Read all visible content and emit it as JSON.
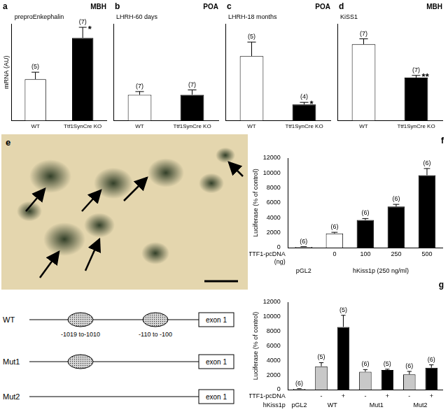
{
  "chart_data": [
    {
      "type": "bar",
      "title": "a",
      "annotations": [
        "MBH",
        "preproEnkephalin"
      ],
      "ylabel": "mRNA (AU)",
      "categories": [
        "WT",
        "Ttf1SynCre KO"
      ],
      "values": [
        2.35,
        4.7
      ],
      "errors": [
        0.4,
        0.6
      ],
      "n_labels": [
        "(5)",
        "(7)"
      ],
      "significance": [
        null,
        "*"
      ],
      "colors": [
        "#ffffff",
        "#000000"
      ],
      "ylim": [
        0,
        5.5
      ],
      "tick_labels": "x",
      "grid": false
    },
    {
      "type": "bar",
      "title": "b",
      "annotations": [
        "POA",
        "LHRH-60 days"
      ],
      "categories": [
        "WT",
        "Ttf1SynCre KO"
      ],
      "values": [
        0.16,
        0.16
      ],
      "errors": [
        0.02,
        0.03
      ],
      "n_labels": [
        "(7)",
        "(7)"
      ],
      "colors": [
        "#ffffff",
        "#000000"
      ],
      "ylim": [
        0,
        0.6
      ],
      "tick_labels": "x",
      "grid": false
    },
    {
      "type": "bar",
      "title": "c",
      "annotations": [
        "POA",
        "LHRH-18 months"
      ],
      "categories": [
        "WT",
        "Ttf1SynCre KO"
      ],
      "values": [
        0.3,
        0.075
      ],
      "errors": [
        0.065,
        0.01
      ],
      "n_labels": [
        "(5)",
        "(4)"
      ],
      "significance": [
        null,
        "*"
      ],
      "colors": [
        "#ffffff",
        "#000000"
      ],
      "ylim": [
        0,
        0.45
      ],
      "tick_labels": "x",
      "grid": false
    },
    {
      "type": "bar",
      "title": "d",
      "annotations": [
        "MBH",
        "KiSS1"
      ],
      "categories": [
        "WT",
        "Ttf1SynCre KO"
      ],
      "values": [
        0.71,
        0.4
      ],
      "errors": [
        0.05,
        0.02
      ],
      "n_labels": [
        "(7)",
        "(7)"
      ],
      "significance": [
        null,
        "**"
      ],
      "colors": [
        "#ffffff",
        "#000000"
      ],
      "ylim": [
        0,
        0.9
      ],
      "tick_labels": "x",
      "grid": false
    },
    {
      "type": "bar",
      "title": "f",
      "ylabel": "Luciferase (% of control)",
      "x_label": [
        "TTF1-pcDNA",
        "(ng)"
      ],
      "categories": [
        null,
        "0",
        "100",
        "250",
        "500"
      ],
      "groups": [
        "pGL2",
        "hKiss1p (250 ng/ml)",
        "hKiss1p (250 ng/ml)",
        "hKiss1p (250 ng/ml)",
        "hKiss1p (250 ng/ml)"
      ],
      "values": [
        100,
        1900,
        3700,
        5500,
        9700
      ],
      "errors": [
        30,
        150,
        200,
        300,
        900
      ],
      "n_labels": [
        "(6)",
        "(6)",
        "(6)",
        "(6)",
        "(6)"
      ],
      "colors": [
        "#ffffff",
        "#ffffff",
        "#000000",
        "#000000",
        "#000000"
      ],
      "ylim": [
        0,
        12000
      ],
      "yticks": [
        0,
        2000,
        4000,
        6000,
        8000,
        10000,
        12000
      ],
      "grid": false
    },
    {
      "type": "bar",
      "title": "g",
      "ylabel": "Luciferase (% of control)",
      "x_label": [
        "TTF1-pcDNA"
      ],
      "group_label": "hKiss1p",
      "categories": [
        null,
        "-",
        "+",
        "-",
        "+",
        "-",
        "+"
      ],
      "groups": [
        "pGL2",
        "WT",
        "WT",
        "Mut1",
        "Mut1",
        "Mut2",
        "Mut2"
      ],
      "values": [
        100,
        3200,
        8600,
        2450,
        2700,
        2100,
        3000
      ],
      "errors": [
        30,
        500,
        1600,
        300,
        100,
        400,
        400
      ],
      "n_labels": [
        "(6)",
        "(5)",
        "(5)",
        "(6)",
        "(5)",
        "(6)",
        "(6)"
      ],
      "colors": [
        "#ffffff",
        "#c8c8c8",
        "#000000",
        "#c8c8c8",
        "#000000",
        "#c8c8c8",
        "#000000"
      ],
      "ylim": [
        0,
        12000
      ],
      "yticks": [
        0,
        2000,
        4000,
        6000,
        8000,
        10000,
        12000
      ],
      "grid": false
    }
  ],
  "image": {
    "title": "e"
  },
  "diagram": {
    "sites": [
      "-1019 to-1010",
      "-110 to -100"
    ],
    "exon": "exon 1",
    "rows": [
      {
        "name": "WT",
        "sites": [
          true,
          true
        ]
      },
      {
        "name": "Mut1",
        "sites": [
          true,
          false
        ]
      },
      {
        "name": "Mut2",
        "sites": [
          false,
          false
        ]
      }
    ]
  }
}
